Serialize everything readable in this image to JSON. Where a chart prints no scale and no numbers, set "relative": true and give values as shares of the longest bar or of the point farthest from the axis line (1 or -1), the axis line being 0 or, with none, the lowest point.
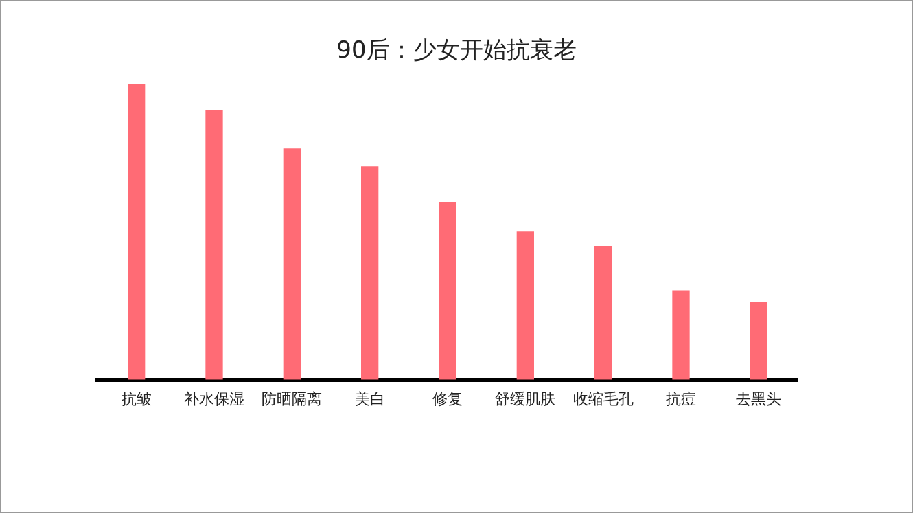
{
  "chart_data": {
    "type": "bar",
    "title": "90后：少女开始抗衰老",
    "relative": true,
    "categories": [
      "抗皱",
      "补水保湿",
      "防晒隔离",
      "美白",
      "修复",
      "舒缓肌肤",
      "收缩毛孔",
      "抗痘",
      "去黑头"
    ],
    "values": [
      1,
      0.91,
      0.78,
      0.72,
      0.6,
      0.5,
      0.45,
      0.3,
      0.26
    ],
    "color": "#ff6b75",
    "grid": false,
    "legend": false
  }
}
